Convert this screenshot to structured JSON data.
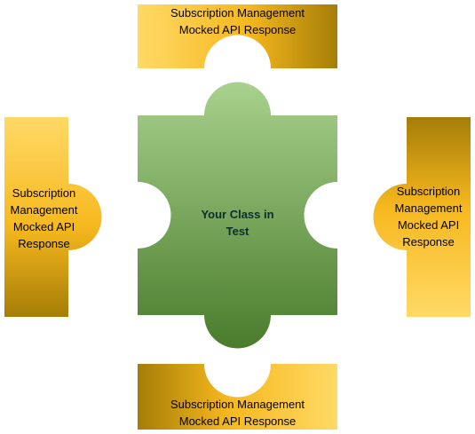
{
  "center_piece": {
    "label": "Your Class in Test",
    "color_light": "#a8d18d",
    "color_dark": "#4a7c2c"
  },
  "mock_pieces": {
    "top": {
      "label": "Subscription Management Mocked API Response"
    },
    "bottom": {
      "label": "Subscription Management Mocked API Response"
    },
    "left": {
      "label": "Subscription Management Mocked API Response"
    },
    "right": {
      "label": "Subscription Management Mocked API Response"
    },
    "color_light": "#ffd966",
    "color_mid": "#f6b81e",
    "color_dark": "#a57d07"
  }
}
